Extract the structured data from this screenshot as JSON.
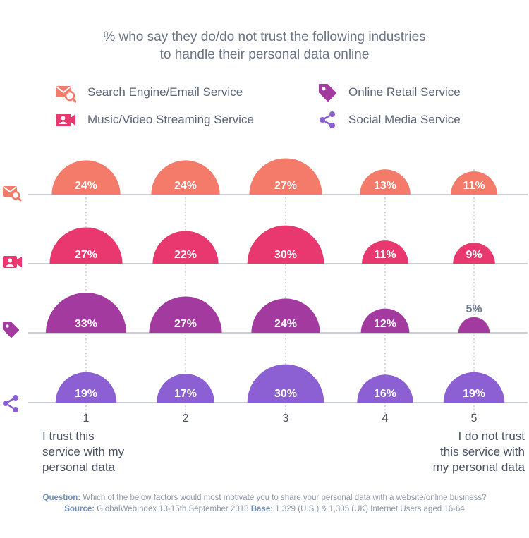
{
  "title_lines": [
    "% who say they do/do not trust the following industries",
    "to handle their personal data online"
  ],
  "legend": [
    {
      "label": "Search Engine/Email Service",
      "icon": "search-email-icon",
      "color": "#f47a6a"
    },
    {
      "label": "Online Retail Service",
      "icon": "tag-icon",
      "color": "#a33a9f"
    },
    {
      "label": "Music/Video Streaming Service",
      "icon": "video-camera-icon",
      "color": "#e8386f"
    },
    {
      "label": "Social Media Service",
      "icon": "share-icon",
      "color": "#8c5fd3"
    }
  ],
  "chart_data": {
    "type": "bubble-semicircle",
    "title": "% who say they do/do not trust the following industries to handle their personal data online",
    "categories": [
      "1",
      "2",
      "3",
      "4",
      "5"
    ],
    "series": [
      {
        "name": "Search Engine/Email Service",
        "color": "#f47a6a",
        "values": [
          24,
          24,
          27,
          13,
          11
        ]
      },
      {
        "name": "Music/Video Streaming Service",
        "color": "#e8386f",
        "values": [
          27,
          22,
          30,
          11,
          9
        ]
      },
      {
        "name": "Online Retail Service",
        "color": "#a33a9f",
        "values": [
          33,
          27,
          24,
          12,
          5
        ]
      },
      {
        "name": "Social Media Service",
        "color": "#8c5fd3",
        "values": [
          19,
          17,
          30,
          16,
          19
        ]
      }
    ],
    "value_suffix": "%",
    "scale_labels": {
      "low": [
        "I trust this",
        "service with my",
        "personal data"
      ],
      "high": [
        "I do not trust",
        "this service with",
        "my personal data"
      ]
    }
  },
  "footer": {
    "question_label": "Question:",
    "question_text": "Which of the below factors would most motivate you to share your personal data with a website/online business?",
    "source_label": "Source:",
    "source_text": "GlobalWebIndex 13-15th September 2018",
    "base_label": "Base:",
    "base_text": "1,329 (U.S.) & 1,305 (UK) Internet Users aged 16-64"
  }
}
